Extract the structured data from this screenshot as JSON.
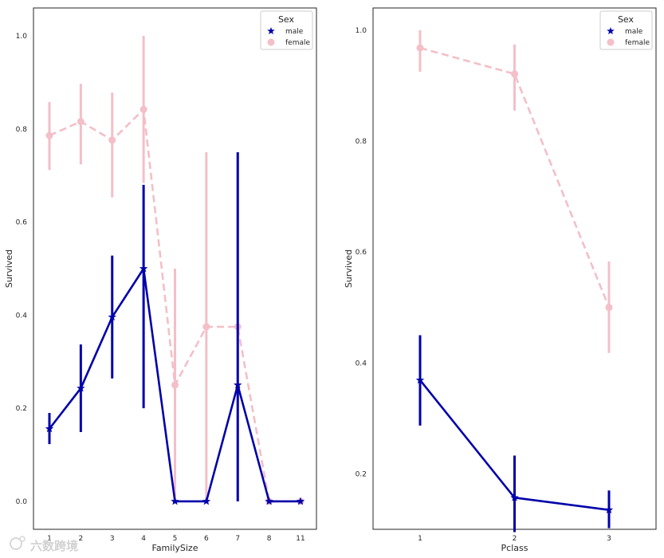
{
  "chart_data": [
    {
      "type": "line",
      "xlabel": "FamilySize",
      "ylabel": "Survived",
      "categories": [
        "1",
        "2",
        "3",
        "4",
        "5",
        "6",
        "7",
        "8",
        "11"
      ],
      "ylim": [
        -0.06,
        1.06
      ],
      "yticks": [
        "0.0",
        "0.2",
        "0.4",
        "0.6",
        "0.8",
        "1.0"
      ],
      "ytick_values": [
        0.0,
        0.2,
        0.4,
        0.6,
        0.8,
        1.0
      ],
      "grid": false,
      "legend": {
        "title": "Sex",
        "placement": "top-right"
      },
      "series": [
        {
          "name": "male",
          "color": "#0000aa",
          "marker": "star",
          "linestyle": "solid",
          "values": [
            0.156,
            0.243,
            0.396,
            0.5,
            0.0,
            0.0,
            0.25,
            0.0,
            0.0
          ],
          "ci_low": [
            0.123,
            0.149,
            0.264,
            0.2,
            0.0,
            0.0,
            0.0,
            0.0,
            0.0
          ],
          "ci_high": [
            0.19,
            0.337,
            0.528,
            0.68,
            0.0,
            0.0,
            0.75,
            0.0,
            0.0
          ]
        },
        {
          "name": "female",
          "color": "#f4bfc8",
          "marker": "circle",
          "linestyle": "dashed",
          "values": [
            0.786,
            0.816,
            0.776,
            0.842,
            0.25,
            0.375,
            0.375,
            0.0,
            0.0
          ],
          "ci_low": [
            0.712,
            0.724,
            0.653,
            0.684,
            0.0,
            0.0,
            0.0,
            0.0,
            0.0
          ],
          "ci_high": [
            0.858,
            0.897,
            0.878,
            1.0,
            0.5,
            0.75,
            0.75,
            0.0,
            0.0
          ]
        }
      ]
    },
    {
      "type": "line",
      "xlabel": "Pclass",
      "ylabel": "Survived",
      "categories": [
        "1",
        "2",
        "3"
      ],
      "ylim": [
        0.1,
        1.04
      ],
      "yticks": [
        "0.2",
        "0.4",
        "0.6",
        "0.8",
        "1.0"
      ],
      "ytick_values": [
        0.2,
        0.4,
        0.6,
        0.8,
        1.0
      ],
      "grid": false,
      "legend": {
        "title": "Sex",
        "placement": "top-right"
      },
      "series": [
        {
          "name": "male",
          "color": "#0000aa",
          "marker": "star",
          "linestyle": "solid",
          "values": [
            0.369,
            0.157,
            0.135
          ],
          "ci_low": [
            0.287,
            0.095,
            0.102
          ],
          "ci_high": [
            0.45,
            0.233,
            0.17
          ]
        },
        {
          "name": "female",
          "color": "#f4bfc8",
          "marker": "circle",
          "linestyle": "dashed",
          "values": [
            0.968,
            0.921,
            0.5
          ],
          "ci_low": [
            0.925,
            0.855,
            0.418
          ],
          "ci_high": [
            1.0,
            0.974,
            0.583
          ]
        }
      ]
    }
  ],
  "watermark": "六数跨境"
}
